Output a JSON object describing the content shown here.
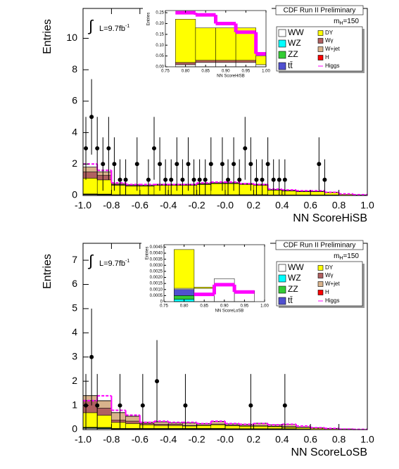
{
  "chart_data": [
    {
      "type": "histogram",
      "title": "CDF Run II Preliminary",
      "x_label": "NN ScoreHiSB",
      "y_label": "Entries",
      "annotations": {
        "mass": "m",
        "mass_subscript": "H",
        "mass_value": "=150",
        "lumi_symbol": "∫",
        "lumi": "L=9.7fb",
        "lumi_exponent": "-1"
      },
      "xlim": [
        -1,
        1
      ],
      "ylim": [
        0,
        11.9
      ],
      "xticks": [
        {
          "value": -1,
          "label": "-1.0"
        },
        -0.8,
        -0.6,
        -0.4,
        -0.2,
        {
          "value": 0,
          "label": "-0.0"
        },
        0.2,
        0.4,
        0.6,
        0.8,
        {
          "value": 1,
          "label": "1.0"
        }
      ],
      "yticks": [
        0,
        2,
        4,
        6,
        8,
        10
      ],
      "bins": [
        -1,
        -0.9,
        -0.8,
        -0.7,
        -0.6,
        -0.5,
        -0.4,
        -0.3,
        -0.2,
        -0.1,
        0,
        0.1,
        0.2,
        0.3,
        0.4,
        0.5,
        0.6,
        0.7,
        0.8,
        0.9,
        1
      ],
      "series": [
        {
          "name": "WW",
          "color": "#ffffff",
          "values": [
            0.05,
            0.04,
            0.02,
            0.02,
            0.02,
            0.02,
            0.02,
            0.02,
            0.02,
            0.02,
            0.02,
            0.02,
            0.02,
            0.02,
            0.02,
            0.02,
            0.02,
            0.02,
            0.02,
            0.02
          ]
        },
        {
          "name": "WZ",
          "color": "#00ffff",
          "values": [
            0.02,
            0.02,
            0.01,
            0.01,
            0.01,
            0.01,
            0.01,
            0.01,
            0.01,
            0.01,
            0.01,
            0.01,
            0.01,
            0.01,
            0.01,
            0.01,
            0.01,
            0.01,
            0,
            0
          ]
        },
        {
          "name": "ZZ",
          "color": "#33cc33",
          "values": [
            0.02,
            0.02,
            0.01,
            0.01,
            0.01,
            0.01,
            0.01,
            0.01,
            0.01,
            0.01,
            0.01,
            0.01,
            0.01,
            0.01,
            0.01,
            0.01,
            0.01,
            0.01,
            0,
            0
          ]
        },
        {
          "name": "tt̄",
          "color": "#5050d0",
          "values": [
            0.01,
            0.01,
            0.01,
            0.01,
            0.01,
            0.01,
            0.01,
            0.01,
            0.01,
            0.01,
            0.01,
            0.01,
            0.01,
            0,
            0,
            0,
            0,
            0,
            0,
            0
          ]
        },
        {
          "name": "DY",
          "color": "#ffff00",
          "values": [
            1.0,
            0.9,
            0.6,
            0.55,
            0.55,
            0.6,
            0.6,
            0.6,
            0.65,
            0.7,
            0.7,
            0.65,
            0.6,
            0.3,
            0.25,
            0.2,
            0.2,
            0.15,
            0.05,
            0.02
          ]
        },
        {
          "name": "Wγ",
          "color": "#b06060",
          "values": [
            0.4,
            0.3,
            0.05,
            0.03,
            0.02,
            0.02,
            0.02,
            0.02,
            0.02,
            0.02,
            0.02,
            0.02,
            0.02,
            0.01,
            0.01,
            0.01,
            0.01,
            0.01,
            0,
            0
          ]
        },
        {
          "name": "W+jet",
          "color": "#d9b38c",
          "values": [
            0.3,
            0.2,
            0.05,
            0.05,
            0.04,
            0.04,
            0.04,
            0.04,
            0.04,
            0.04,
            0.04,
            0.04,
            0.04,
            0.02,
            0.02,
            0.02,
            0.02,
            0.01,
            0,
            0
          ]
        },
        {
          "name": "H",
          "color": "#ff0000",
          "values": [
            0.01,
            0.01,
            0.01,
            0.01,
            0.01,
            0.01,
            0.01,
            0.01,
            0.01,
            0.01,
            0.01,
            0.01,
            0.01,
            0.01,
            0.01,
            0.01,
            0,
            0,
            0,
            0
          ]
        }
      ],
      "signal": {
        "name": "Higgs",
        "color": "#ff00ff",
        "values": [
          2.0,
          1.6,
          0.8,
          0.7,
          0.7,
          0.7,
          0.7,
          0.7,
          0.8,
          0.85,
          0.85,
          0.75,
          0.7,
          0.4,
          0.35,
          0.3,
          0.3,
          0.2,
          0.1,
          0.05
        ]
      },
      "points": {
        "x": [
          -0.98,
          -0.94,
          -0.9,
          -0.86,
          -0.82,
          -0.78,
          -0.74,
          -0.7,
          -0.62,
          -0.54,
          -0.5,
          -0.46,
          -0.42,
          -0.38,
          -0.34,
          -0.3,
          -0.26,
          -0.22,
          -0.18,
          -0.14,
          -0.1,
          -0.02,
          0.02,
          0.06,
          0.1,
          0.14,
          0.18,
          0.22,
          0.26,
          0.3,
          0.34,
          0.38,
          0.42,
          0.66,
          0.7
        ],
        "values": [
          3,
          5,
          3,
          2,
          3,
          2,
          1,
          1,
          2,
          1,
          3,
          2,
          1,
          1,
          2,
          1,
          2,
          1,
          1,
          1,
          2,
          2,
          1,
          2,
          1,
          3,
          2,
          1,
          1,
          2,
          1,
          1,
          1,
          2,
          1
        ],
        "errors": [
          2.0,
          2.4,
          2.0,
          1.7,
          2.0,
          1.7,
          1.3,
          1.3,
          1.7,
          1.3,
          2.0,
          1.7,
          1.3,
          1.3,
          1.7,
          1.3,
          1.7,
          1.3,
          1.3,
          1.3,
          1.7,
          1.7,
          1.3,
          1.7,
          1.3,
          2.0,
          1.7,
          1.3,
          1.3,
          1.7,
          1.3,
          1.3,
          1.3,
          1.7,
          1.3
        ]
      }
    },
    {
      "type": "histogram",
      "x_label": "NN ScoreHiSB",
      "y_label": "Entries",
      "xlim": [
        0.75,
        1
      ],
      "ylim": [
        0,
        0.26
      ],
      "xticks": [
        0.75,
        {
          "value": 0.8,
          "label": "0.80"
        },
        0.85,
        {
          "value": 0.9,
          "label": "0.90"
        },
        0.95,
        {
          "value": 1,
          "label": "1.00"
        }
      ],
      "yticks": [
        {
          "value": 0,
          "label": "0.00"
        },
        0.05,
        {
          "value": 0.1,
          "label": "0.10"
        },
        0.15,
        {
          "value": 0.2,
          "label": "0.20"
        },
        0.25
      ],
      "bins": [
        0.775,
        0.825,
        0.875,
        0.925,
        0.975,
        1
      ],
      "series": [
        {
          "name": "WW",
          "color": "#ffffff",
          "values": [
            0.01,
            0.02,
            0.02,
            0.02,
            0.01
          ]
        },
        {
          "name": "Wγ",
          "color": "#b06060",
          "values": [
            0.01,
            0.01,
            0.01,
            0.01,
            0
          ]
        },
        {
          "name": "DY",
          "color": "#ffff00",
          "values": [
            0.2,
            0.15,
            0.15,
            0.15,
            0.04
          ]
        }
      ],
      "signal": {
        "name": "Higgs",
        "color": "#ff00ff",
        "values": [
          0.25,
          0.24,
          0.2,
          0.16,
          0.06
        ]
      }
    },
    {
      "type": "histogram",
      "title": "CDF Run II Preliminary",
      "x_label": "NN ScoreLoSB",
      "y_label": "Entries",
      "annotations": {
        "mass": "m",
        "mass_subscript": "H",
        "mass_value": "=150",
        "lumi_symbol": "∫",
        "lumi": "L=9.7fb",
        "lumi_exponent": "-1"
      },
      "xlim": [
        -1,
        1
      ],
      "ylim": [
        0,
        7.7
      ],
      "xticks": [
        {
          "value": -1,
          "label": "-1.0"
        },
        -0.8,
        -0.6,
        -0.4,
        -0.2,
        {
          "value": 0,
          "label": "-0.0"
        },
        0.2,
        0.4,
        0.6,
        0.8,
        {
          "value": 1,
          "label": "1.0"
        }
      ],
      "yticks": [
        0,
        1,
        2,
        3,
        4,
        5,
        6,
        7
      ],
      "bins": [
        -1,
        -0.9,
        -0.8,
        -0.7,
        -0.6,
        -0.5,
        -0.4,
        -0.3,
        -0.2,
        -0.1,
        0,
        0.1,
        0.2,
        0.3,
        0.4,
        0.5,
        0.6,
        0.7,
        0.8,
        0.9,
        1
      ],
      "series": [
        {
          "name": "WW",
          "color": "#ffffff",
          "values": [
            0.05,
            0.04,
            0.02,
            0.02,
            0.02,
            0.02,
            0.02,
            0.02,
            0.02,
            0.02,
            0.02,
            0.02,
            0.02,
            0.02,
            0.02,
            0.02,
            0.01,
            0.01,
            0.01,
            0
          ]
        },
        {
          "name": "WZ",
          "color": "#00ffff",
          "values": [
            0.02,
            0.02,
            0.01,
            0.01,
            0.01,
            0.01,
            0.01,
            0.01,
            0.01,
            0.01,
            0.01,
            0.01,
            0.01,
            0.01,
            0.01,
            0,
            0,
            0,
            0,
            0
          ]
        },
        {
          "name": "ZZ",
          "color": "#33cc33",
          "values": [
            0.02,
            0.02,
            0.01,
            0.01,
            0.01,
            0.01,
            0.01,
            0.01,
            0.01,
            0.01,
            0.01,
            0.01,
            0.01,
            0.01,
            0.01,
            0,
            0,
            0,
            0,
            0
          ]
        },
        {
          "name": "tt̄",
          "color": "#5050d0",
          "values": [
            0.01,
            0.01,
            0.01,
            0.01,
            0.01,
            0.01,
            0.01,
            0.01,
            0.01,
            0.01,
            0,
            0,
            0,
            0,
            0,
            0,
            0,
            0,
            0,
            0
          ]
        },
        {
          "name": "DY",
          "color": "#ffff00",
          "values": [
            0.6,
            0.5,
            0.25,
            0.2,
            0.15,
            0.12,
            0.12,
            0.1,
            0.12,
            0.15,
            0.12,
            0.1,
            0.1,
            0.08,
            0.06,
            0.05,
            0.04,
            0.03,
            0.02,
            0.01
          ]
        },
        {
          "name": "Wγ",
          "color": "#b06060",
          "values": [
            0.5,
            0.3,
            0.1,
            0.1,
            0.05,
            0.05,
            0.05,
            0.02,
            0.02,
            0.03,
            0.02,
            0.02,
            0.02,
            0.02,
            0.02,
            0.01,
            0.01,
            0,
            0,
            0
          ]
        },
        {
          "name": "W+jet",
          "color": "#d9b38c",
          "values": [
            0.2,
            0.3,
            0.3,
            0.2,
            0.05,
            0.1,
            0.05,
            0.1,
            0.05,
            0.1,
            0.05,
            0.05,
            0.1,
            0.05,
            0.1,
            0.05,
            0.02,
            0.01,
            0,
            0
          ]
        },
        {
          "name": "H",
          "color": "#ff0000",
          "values": [
            0.01,
            0.01,
            0.01,
            0.01,
            0.01,
            0.01,
            0.01,
            0.01,
            0.01,
            0.01,
            0.01,
            0.01,
            0.01,
            0.01,
            0,
            0,
            0,
            0,
            0,
            0
          ]
        }
      ],
      "signal": {
        "name": "Higgs",
        "color": "#ff00ff",
        "values": [
          1.2,
          1.4,
          0.8,
          0.6,
          0.3,
          0.35,
          0.3,
          0.3,
          0.25,
          0.35,
          0.25,
          0.22,
          0.25,
          0.2,
          0.22,
          0.15,
          0.08,
          0.05,
          0.02,
          0.01
        ]
      },
      "points": {
        "x": [
          -0.98,
          -0.94,
          -0.9,
          -0.74,
          -0.58,
          -0.48,
          -0.28,
          0.18,
          0.42
        ],
        "values": [
          1,
          3,
          1,
          1,
          1,
          2,
          1,
          1,
          1
        ],
        "errors": [
          1.3,
          2.0,
          1.3,
          1.3,
          1.3,
          1.7,
          1.3,
          1.3,
          1.3
        ]
      }
    },
    {
      "type": "histogram",
      "x_label": "NN ScoreLoSB",
      "y_label": "Entries",
      "xlim": [
        0.75,
        1
      ],
      "ylim": [
        0,
        0.0047
      ],
      "xticks": [
        0.75,
        {
          "value": 0.8,
          "label": "0.80"
        },
        0.85,
        {
          "value": 0.9,
          "label": "0.90"
        },
        0.95,
        {
          "value": 1,
          "label": "1.00"
        }
      ],
      "yticks": [
        0,
        0.0005,
        {
          "value": 0.001,
          "label": "0.0010"
        },
        0.0015,
        {
          "value": 0.002,
          "label": "0.0020"
        },
        0.0025,
        {
          "value": 0.003,
          "label": "0.0030"
        },
        0.0035,
        {
          "value": 0.004,
          "label": "0.0040"
        },
        0.0045
      ],
      "bins": [
        0.775,
        0.825,
        0.875,
        0.925,
        0.975
      ],
      "series": [
        {
          "name": "WZ",
          "color": "#00ffff",
          "values": [
            0.0002,
            0,
            0,
            0
          ]
        },
        {
          "name": "ZZ",
          "color": "#33cc33",
          "values": [
            0.0003,
            0,
            0,
            0
          ]
        },
        {
          "name": "tt̄",
          "color": "#5050d0",
          "values": [
            0.0005,
            0,
            0,
            0
          ]
        },
        {
          "name": "WW",
          "color": "#ffffff",
          "values": [
            0.0001,
            0.0011,
            0.0019,
            0.0009
          ]
        },
        {
          "name": "DY",
          "color": "#ffff00",
          "values": [
            0.0032,
            0.0001,
            0,
            0
          ]
        }
      ],
      "signal": {
        "name": "Higgs",
        "color": "#ff00ff",
        "values": [
          null,
          0.0006,
          0.0014,
          0.0008
        ]
      }
    }
  ]
}
